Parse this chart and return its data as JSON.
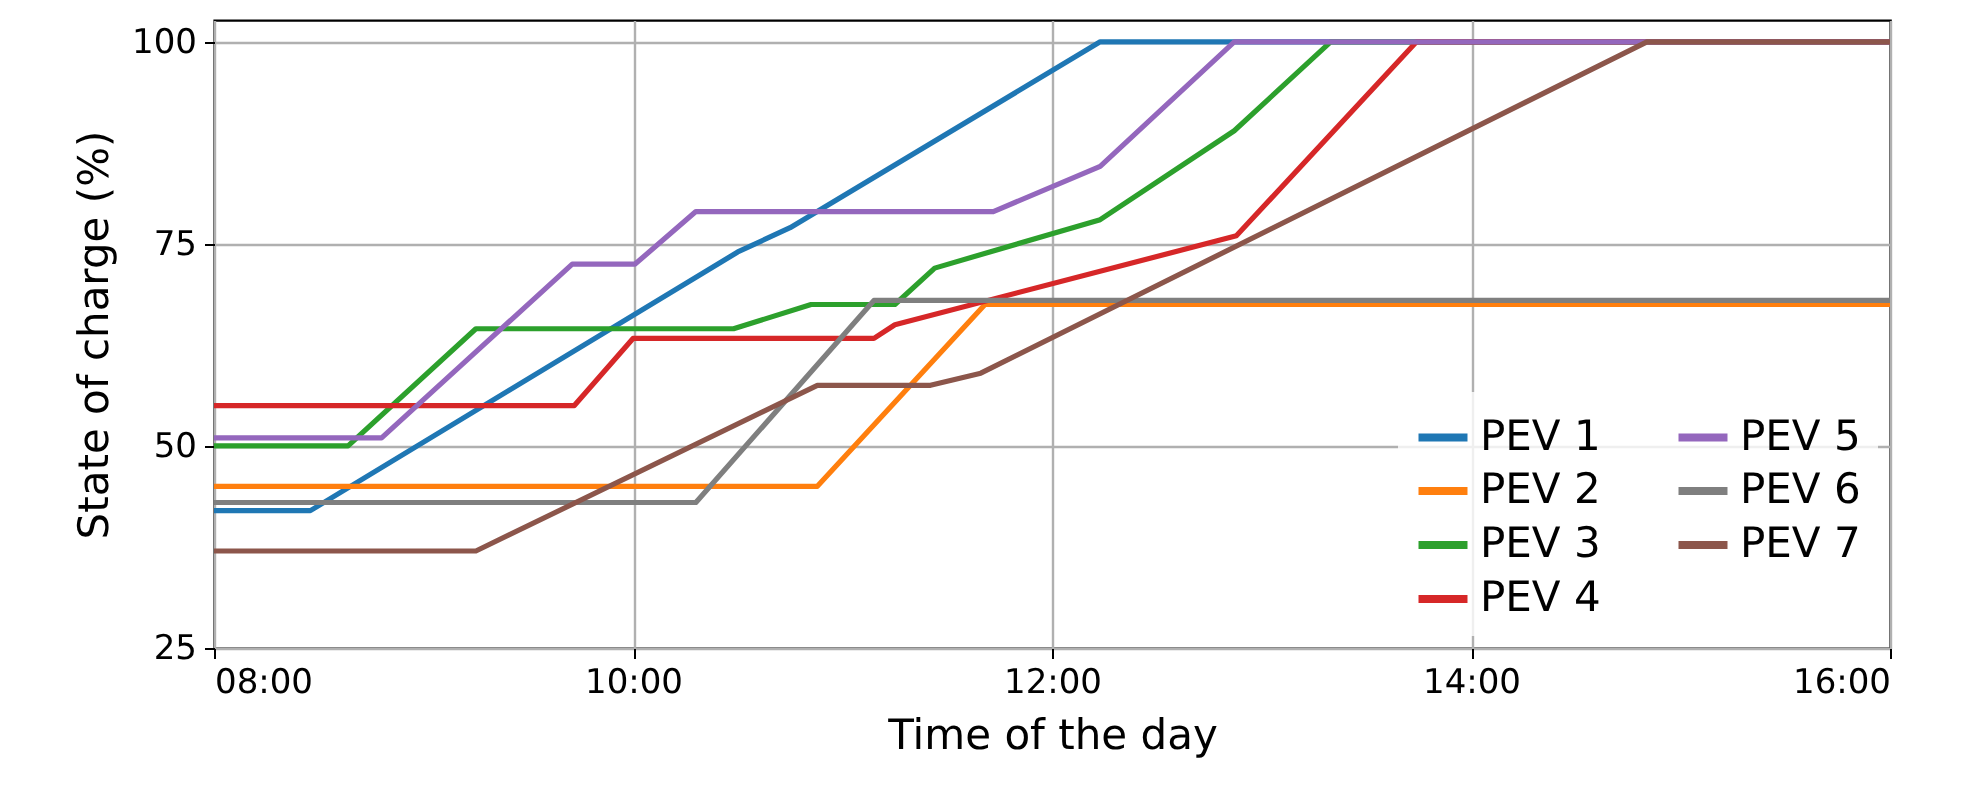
{
  "chart_data": {
    "type": "line",
    "xlabel": "Time of the day",
    "ylabel": "State of charge (%)",
    "xlim": [
      8,
      16
    ],
    "xticks": [
      {
        "value": 8,
        "label": "08:00"
      },
      {
        "value": 10,
        "label": "10:00"
      },
      {
        "value": 12,
        "label": "12:00"
      },
      {
        "value": 14,
        "label": "14:00"
      },
      {
        "value": 16,
        "label": "16:00"
      }
    ],
    "ylim": [
      25,
      102.7
    ],
    "yticks": [
      25,
      50,
      75,
      100
    ],
    "grid": true,
    "legend": "bottom right",
    "line_style": "solid",
    "marker": "none",
    "series": [
      {
        "name": "PEV 1",
        "color": "#1f77b4",
        "x": [
          8,
          8.46,
          10.5,
          10.75,
          12.23,
          16
        ],
        "values": [
          42,
          42,
          74,
          77,
          100,
          100
        ]
      },
      {
        "name": "PEV 2",
        "color": "#ff7f0e",
        "x": [
          8,
          10.88,
          11.68,
          16
        ],
        "values": [
          45,
          45,
          67.5,
          67.5
        ]
      },
      {
        "name": "PEV 3",
        "color": "#2ca02c",
        "x": [
          8,
          8.64,
          9.25,
          10.48,
          10.85,
          11.25,
          11.44,
          12.23,
          12.87,
          13.33,
          16
        ],
        "values": [
          50,
          50,
          64.5,
          64.5,
          67.5,
          67.5,
          72,
          78,
          89,
          100,
          100
        ]
      },
      {
        "name": "PEV 4",
        "color": "#d62728",
        "x": [
          8,
          9.72,
          10,
          11.15,
          11.25,
          12.88,
          13.74,
          16
        ],
        "values": [
          55,
          55,
          63.3,
          63.3,
          65,
          76,
          100,
          100
        ]
      },
      {
        "name": "PEV 5",
        "color": "#9467bd",
        "x": [
          8,
          8.8,
          9.71,
          10.01,
          10.3,
          11.72,
          12.23,
          12.87,
          16
        ],
        "values": [
          51,
          51,
          72.5,
          72.5,
          79,
          79,
          84.6,
          100,
          100
        ]
      },
      {
        "name": "PEV 6",
        "color": "#7f7f7f",
        "x": [
          8,
          10.3,
          11.15,
          16
        ],
        "values": [
          43,
          43,
          68,
          68
        ]
      },
      {
        "name": "PEV 7",
        "color": "#8c564b",
        "x": [
          8,
          9.25,
          10.88,
          11.42,
          11.66,
          14.84,
          16
        ],
        "values": [
          37,
          37,
          57.5,
          57.5,
          59,
          100,
          100
        ]
      }
    ]
  }
}
